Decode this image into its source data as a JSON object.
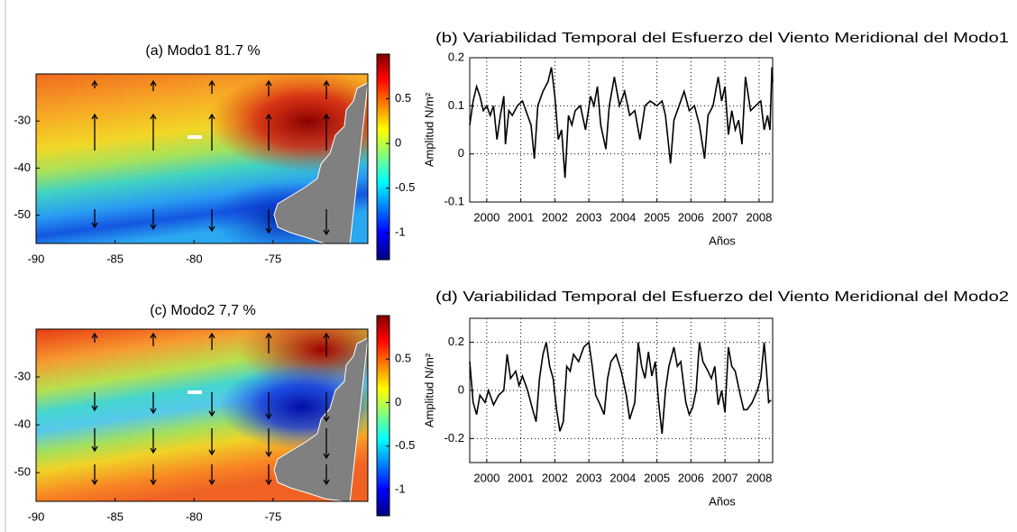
{
  "chart_data": [
    {
      "type": "map",
      "title": "(a)   Modo1   81.7 %",
      "xlim": [
        -90,
        -69
      ],
      "xticks": [
        -90,
        -85,
        -80,
        -75
      ],
      "ylim": [
        -56,
        -20
      ],
      "yticks": [
        -50,
        -40,
        -30
      ],
      "clim": [
        -1.3,
        1.0
      ],
      "cticks": [
        -1,
        -0.5,
        0,
        0.5
      ]
    },
    {
      "type": "line",
      "title": "(b) Variabilidad Temporal del Esfuerzo del Viento Meridional del Modo1",
      "xlabel": "Años",
      "ylabel": "Amplitud N/m²",
      "color": "#000000",
      "grid": true,
      "xlim": [
        2000,
        2008.9
      ],
      "xticks": [
        {
          "value": 2000.5,
          "label": "2000"
        },
        {
          "value": 2001.5,
          "label": "2001"
        },
        {
          "value": 2002.5,
          "label": "2002"
        },
        {
          "value": 2003.5,
          "label": "2003"
        },
        {
          "value": 2004.5,
          "label": "2004"
        },
        {
          "value": 2005.5,
          "label": "2005"
        },
        {
          "value": 2006.5,
          "label": "2006"
        },
        {
          "value": 2007.5,
          "label": "2007"
        },
        {
          "value": 2008.5,
          "label": "2008"
        }
      ],
      "ylim": [
        -0.1,
        0.2
      ],
      "yticks": [
        -0.1,
        0,
        0.1,
        0.2
      ],
      "x": [
        2000.0,
        2000.1,
        2000.2,
        2000.3,
        2000.4,
        2000.5,
        2000.6,
        2000.7,
        2000.8,
        2000.9,
        2001.0,
        2001.05,
        2001.15,
        2001.25,
        2001.4,
        2001.55,
        2001.7,
        2001.8,
        2001.9,
        2002.0,
        2002.15,
        2002.3,
        2002.4,
        2002.5,
        2002.6,
        2002.7,
        2002.8,
        2002.9,
        2003.0,
        2003.1,
        2003.25,
        2003.4,
        2003.55,
        2003.65,
        2003.75,
        2003.85,
        2004.0,
        2004.1,
        2004.25,
        2004.4,
        2004.55,
        2004.7,
        2004.85,
        2005.0,
        2005.15,
        2005.3,
        2005.5,
        2005.65,
        2005.75,
        2005.9,
        2006.0,
        2006.15,
        2006.3,
        2006.45,
        2006.6,
        2006.75,
        2006.9,
        2007.0,
        2007.15,
        2007.3,
        2007.4,
        2007.5,
        2007.6,
        2007.7,
        2007.8,
        2007.9,
        2008.0,
        2008.1,
        2008.25,
        2008.4,
        2008.55,
        2008.65,
        2008.75,
        2008.82,
        2008.88,
        2008.9
      ],
      "values": [
        0.06,
        0.11,
        0.14,
        0.12,
        0.09,
        0.1,
        0.08,
        0.1,
        0.03,
        0.08,
        0.12,
        0.02,
        0.09,
        0.08,
        0.1,
        0.11,
        0.08,
        0.06,
        -0.01,
        0.1,
        0.13,
        0.15,
        0.18,
        0.12,
        0.03,
        0.05,
        -0.05,
        0.08,
        0.06,
        0.09,
        0.1,
        0.05,
        0.12,
        0.1,
        0.14,
        0.06,
        0.01,
        0.1,
        0.16,
        0.1,
        0.13,
        0.08,
        0.09,
        0.03,
        0.1,
        0.11,
        0.1,
        0.11,
        0.08,
        -0.02,
        0.07,
        0.1,
        0.13,
        0.09,
        0.1,
        0.06,
        -0.01,
        0.08,
        0.1,
        0.16,
        0.11,
        0.14,
        0.04,
        0.09,
        0.05,
        0.07,
        0.02,
        0.16,
        0.09,
        0.1,
        0.11,
        0.05,
        0.08,
        0.05,
        0.18,
        0.15
      ]
    },
    {
      "type": "map",
      "title": "(c)   Modo2   7,7 %",
      "xlim": [
        -90,
        -69
      ],
      "xticks": [
        -90,
        -85,
        -80,
        -75
      ],
      "ylim": [
        -56,
        -20
      ],
      "yticks": [
        -50,
        -40,
        -30
      ],
      "clim": [
        -1.3,
        1.0
      ],
      "cticks": [
        -1,
        -0.5,
        0,
        0.5
      ]
    },
    {
      "type": "line",
      "title": "(d) Variabilidad Temporal del Esfuerzo del Viento Meridional del Modo2",
      "xlabel": "Años",
      "ylabel": "Amplitud N/m²",
      "color": "#000000",
      "grid": true,
      "xlim": [
        2000,
        2008.9
      ],
      "xticks": [
        {
          "value": 2000.5,
          "label": "2000"
        },
        {
          "value": 2001.5,
          "label": "2001"
        },
        {
          "value": 2002.5,
          "label": "2002"
        },
        {
          "value": 2003.5,
          "label": "2003"
        },
        {
          "value": 2004.5,
          "label": "2004"
        },
        {
          "value": 2005.5,
          "label": "2005"
        },
        {
          "value": 2006.5,
          "label": "2006"
        },
        {
          "value": 2007.5,
          "label": "2007"
        },
        {
          "value": 2008.5,
          "label": "2008"
        }
      ],
      "ylim": [
        -0.3,
        0.3
      ],
      "yticks": [
        -0.2,
        0,
        0.2
      ],
      "x": [
        2000.0,
        2000.1,
        2000.2,
        2000.3,
        2000.45,
        2000.55,
        2000.7,
        2000.85,
        2001.0,
        2001.1,
        2001.2,
        2001.35,
        2001.45,
        2001.55,
        2001.7,
        2001.85,
        2001.95,
        2002.05,
        2002.15,
        2002.25,
        2002.35,
        2002.45,
        2002.55,
        2002.65,
        2002.75,
        2002.85,
        2002.95,
        2003.05,
        2003.2,
        2003.35,
        2003.5,
        2003.6,
        2003.7,
        2003.8,
        2003.95,
        2004.05,
        2004.15,
        2004.3,
        2004.45,
        2004.6,
        2004.7,
        2004.85,
        2004.95,
        2005.05,
        2005.15,
        2005.25,
        2005.35,
        2005.45,
        2005.55,
        2005.65,
        2005.75,
        2005.85,
        2006.0,
        2006.1,
        2006.2,
        2006.35,
        2006.45,
        2006.55,
        2006.65,
        2006.75,
        2006.85,
        2007.0,
        2007.1,
        2007.2,
        2007.3,
        2007.4,
        2007.5,
        2007.6,
        2007.7,
        2007.8,
        2007.95,
        2008.05,
        2008.15,
        2008.3,
        2008.45,
        2008.55,
        2008.65,
        2008.72,
        2008.78,
        2008.85
      ],
      "values": [
        0.12,
        -0.05,
        -0.1,
        -0.02,
        -0.05,
        0.0,
        -0.06,
        -0.02,
        0.0,
        0.15,
        0.05,
        0.08,
        0.02,
        0.06,
        0.0,
        -0.08,
        -0.13,
        0.05,
        0.15,
        0.2,
        0.1,
        0.05,
        -0.08,
        -0.17,
        -0.13,
        0.1,
        0.08,
        0.15,
        0.12,
        0.18,
        0.2,
        0.1,
        -0.02,
        -0.05,
        -0.1,
        0.05,
        0.12,
        0.15,
        0.08,
        -0.02,
        -0.12,
        -0.05,
        0.2,
        0.1,
        0.05,
        0.16,
        0.06,
        0.12,
        -0.05,
        -0.18,
        0.0,
        0.1,
        0.18,
        0.1,
        0.12,
        -0.05,
        -0.1,
        -0.07,
        0.0,
        0.2,
        0.12,
        0.08,
        0.05,
        0.1,
        -0.06,
        0.0,
        -0.09,
        0.18,
        0.1,
        0.08,
        -0.02,
        -0.08,
        -0.08,
        -0.05,
        0.0,
        0.05,
        0.2,
        0.08,
        -0.05,
        -0.04
      ]
    }
  ]
}
